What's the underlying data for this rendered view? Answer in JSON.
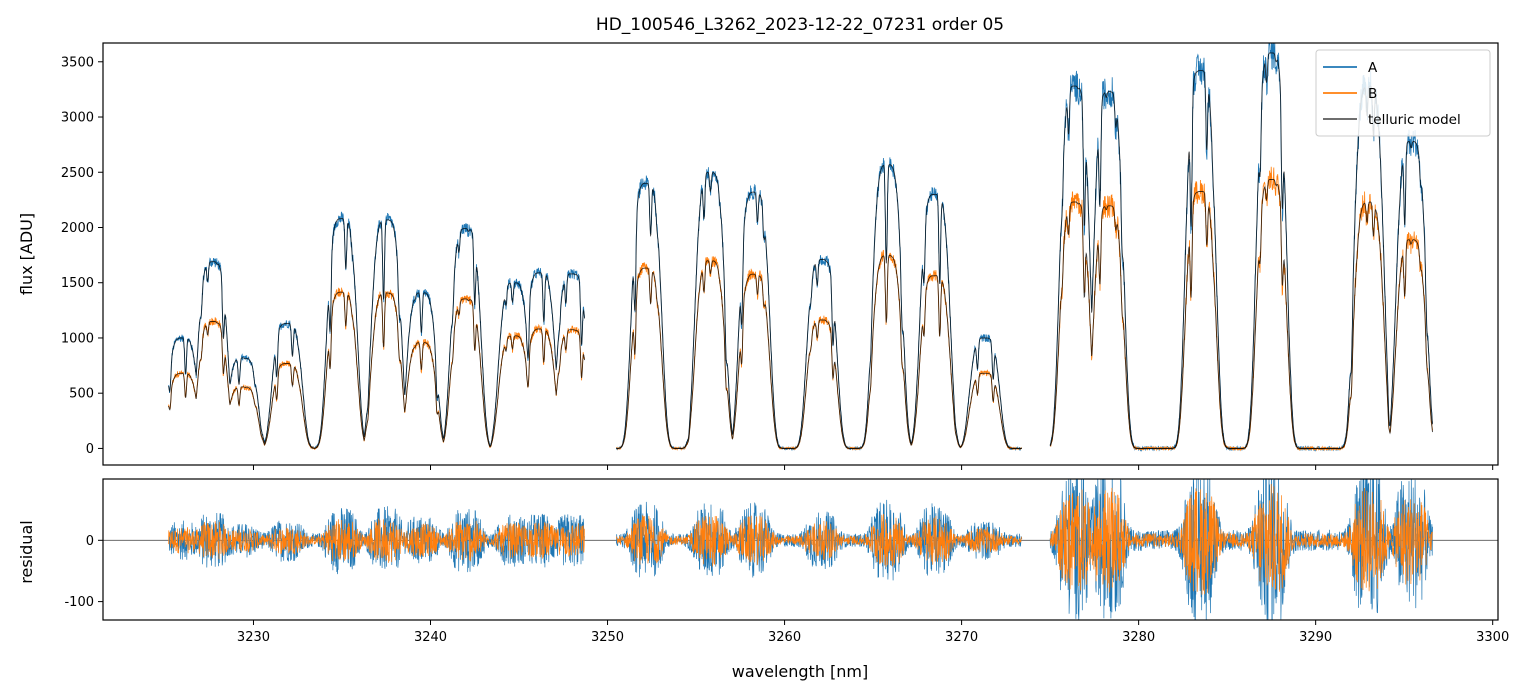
{
  "chart_data": [
    {
      "panel": "spectrum",
      "type": "line",
      "title": "HD_100546_L3262_2023-12-22_07231  order 05",
      "xlabel": "",
      "ylabel": "flux [ADU]",
      "xlim": [
        3221.5,
        3300.3
      ],
      "ylim": [
        -150,
        3670
      ],
      "yticks": [
        0,
        500,
        1000,
        1500,
        2000,
        2500,
        3000,
        3500
      ],
      "xticks": [
        3230,
        3240,
        3250,
        3260,
        3270,
        3280,
        3290,
        3300
      ],
      "legend": {
        "placement": "top-right",
        "entries": [
          "A",
          "B",
          "telluric model"
        ]
      },
      "series": [
        {
          "name": "A",
          "color": "#1f77b4"
        },
        {
          "name": "B",
          "color": "#ff7f0e"
        },
        {
          "name": "telluric model",
          "color": "#000000"
        }
      ],
      "segments": [
        {
          "x_start": 3225.2,
          "x_end": 3248.7
        },
        {
          "x_start": 3250.5,
          "x_end": 3273.4
        },
        {
          "x_start": 3275.0,
          "x_end": 3296.6
        }
      ],
      "continuum_peaks_A": [
        {
          "x": 3226.0,
          "y": 1000
        },
        {
          "x": 3227.7,
          "y": 1690
        },
        {
          "x": 3229.4,
          "y": 820
        },
        {
          "x": 3231.9,
          "y": 1130
        },
        {
          "x": 3235.0,
          "y": 2080
        },
        {
          "x": 3237.5,
          "y": 2070
        },
        {
          "x": 3239.5,
          "y": 1410
        },
        {
          "x": 3242.0,
          "y": 1990
        },
        {
          "x": 3244.7,
          "y": 1500
        },
        {
          "x": 3246.2,
          "y": 1590
        },
        {
          "x": 3248.0,
          "y": 1580
        },
        {
          "x": 3252.2,
          "y": 2400
        },
        {
          "x": 3255.8,
          "y": 2500
        },
        {
          "x": 3258.3,
          "y": 2320
        },
        {
          "x": 3262.1,
          "y": 1710
        },
        {
          "x": 3265.8,
          "y": 2570
        },
        {
          "x": 3268.5,
          "y": 2300
        },
        {
          "x": 3271.3,
          "y": 1000
        },
        {
          "x": 3276.4,
          "y": 3280
        },
        {
          "x": 3278.3,
          "y": 3230
        },
        {
          "x": 3283.5,
          "y": 3420
        },
        {
          "x": 3287.5,
          "y": 3580
        },
        {
          "x": 3293.0,
          "y": 3280
        },
        {
          "x": 3295.4,
          "y": 2780
        }
      ],
      "flux_ratio_B_over_A": 0.68
    },
    {
      "panel": "residual",
      "type": "line",
      "xlabel": "wavelength [nm]",
      "ylabel": "residual",
      "xlim": [
        3221.5,
        3300.3
      ],
      "ylim": [
        -130,
        100
      ],
      "yticks": [
        -100,
        0
      ],
      "xticks": [
        3230,
        3240,
        3250,
        3260,
        3270,
        3280,
        3290,
        3300
      ],
      "zero_line": 0,
      "series": [
        {
          "name": "A",
          "color": "#1f77b4"
        },
        {
          "name": "B",
          "color": "#ff7f0e"
        }
      ]
    }
  ]
}
